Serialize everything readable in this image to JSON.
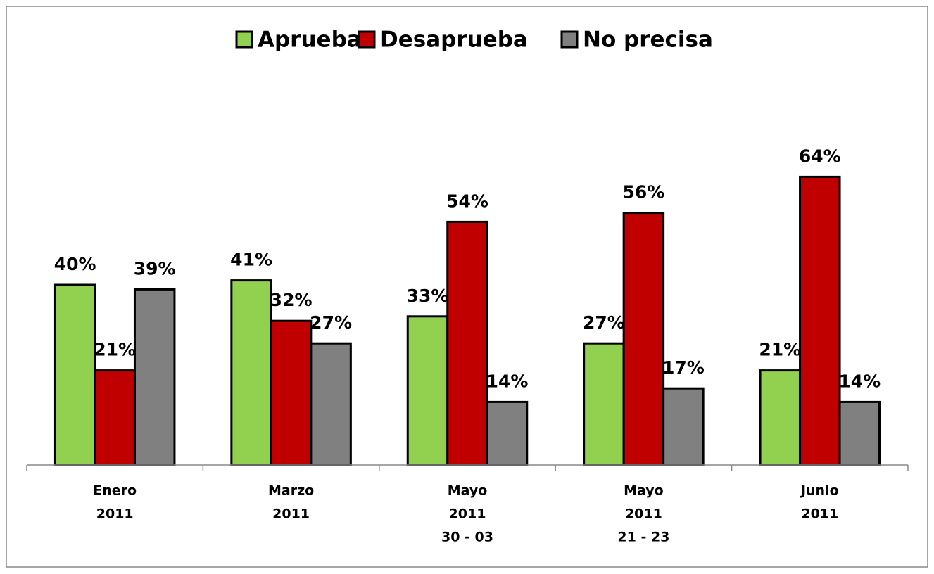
{
  "chart_data": {
    "type": "bar",
    "categories": [
      [
        "Enero",
        "2011"
      ],
      [
        "Marzo",
        "2011"
      ],
      [
        "Mayo",
        "2011",
        "30 - 03"
      ],
      [
        "Mayo",
        "2011",
        "21 - 23"
      ],
      [
        "Junio",
        "2011"
      ]
    ],
    "series": [
      {
        "name": "Aprueba",
        "color": "#92d050",
        "values": [
          40,
          41,
          33,
          27,
          21
        ],
        "value_labels": [
          "40%",
          "41%",
          "33%",
          "27%",
          "21%"
        ]
      },
      {
        "name": "Desaprueba",
        "color": "#c00000",
        "values": [
          21,
          32,
          54,
          56,
          64
        ],
        "value_labels": [
          "21%",
          "32%",
          "54%",
          "56%",
          "64%"
        ]
      },
      {
        "name": "No precisa",
        "color": "#808080",
        "values": [
          39,
          27,
          14,
          17,
          14
        ],
        "value_labels": [
          "39%",
          "27%",
          "14%",
          "17%",
          "14%"
        ]
      }
    ],
    "ylim": [
      0,
      100
    ],
    "legend": "top"
  }
}
